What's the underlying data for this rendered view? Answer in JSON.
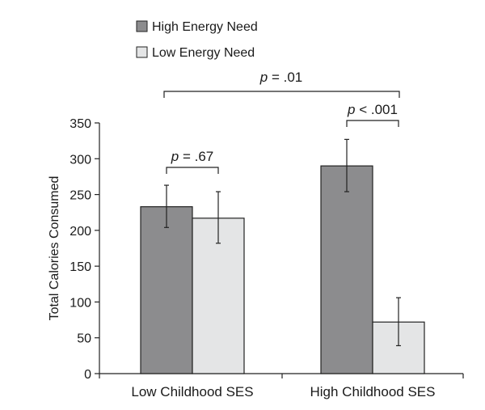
{
  "chart_data": {
    "type": "bar",
    "title": "",
    "xlabel": "",
    "ylabel": "Total Calories Consumed",
    "ylim": [
      0,
      350
    ],
    "yticks": [
      0,
      50,
      100,
      150,
      200,
      250,
      300,
      350
    ],
    "categories": [
      "Low Childhood SES",
      "High Childhood SES"
    ],
    "series": [
      {
        "name": "High Energy Need",
        "color": "#8c8c8e",
        "values": [
          233,
          290
        ],
        "error_low": [
          204,
          254
        ],
        "error_high": [
          263,
          327
        ]
      },
      {
        "name": "Low Energy Need",
        "color": "#e4e5e6",
        "values": [
          217,
          72
        ],
        "error_low": [
          182,
          39
        ],
        "error_high": [
          254,
          106
        ]
      }
    ],
    "legend": {
      "placement": "top-left",
      "items": [
        "High Energy Need",
        "Low Energy Need"
      ]
    },
    "annotations": [
      {
        "id": "low_ses_compare",
        "italic": "p",
        "rest": " = .67"
      },
      {
        "id": "high_ses_compare",
        "italic": "p",
        "rest": " < .001"
      },
      {
        "id": "overall_compare",
        "italic": "p",
        "rest": " = .01"
      }
    ]
  }
}
